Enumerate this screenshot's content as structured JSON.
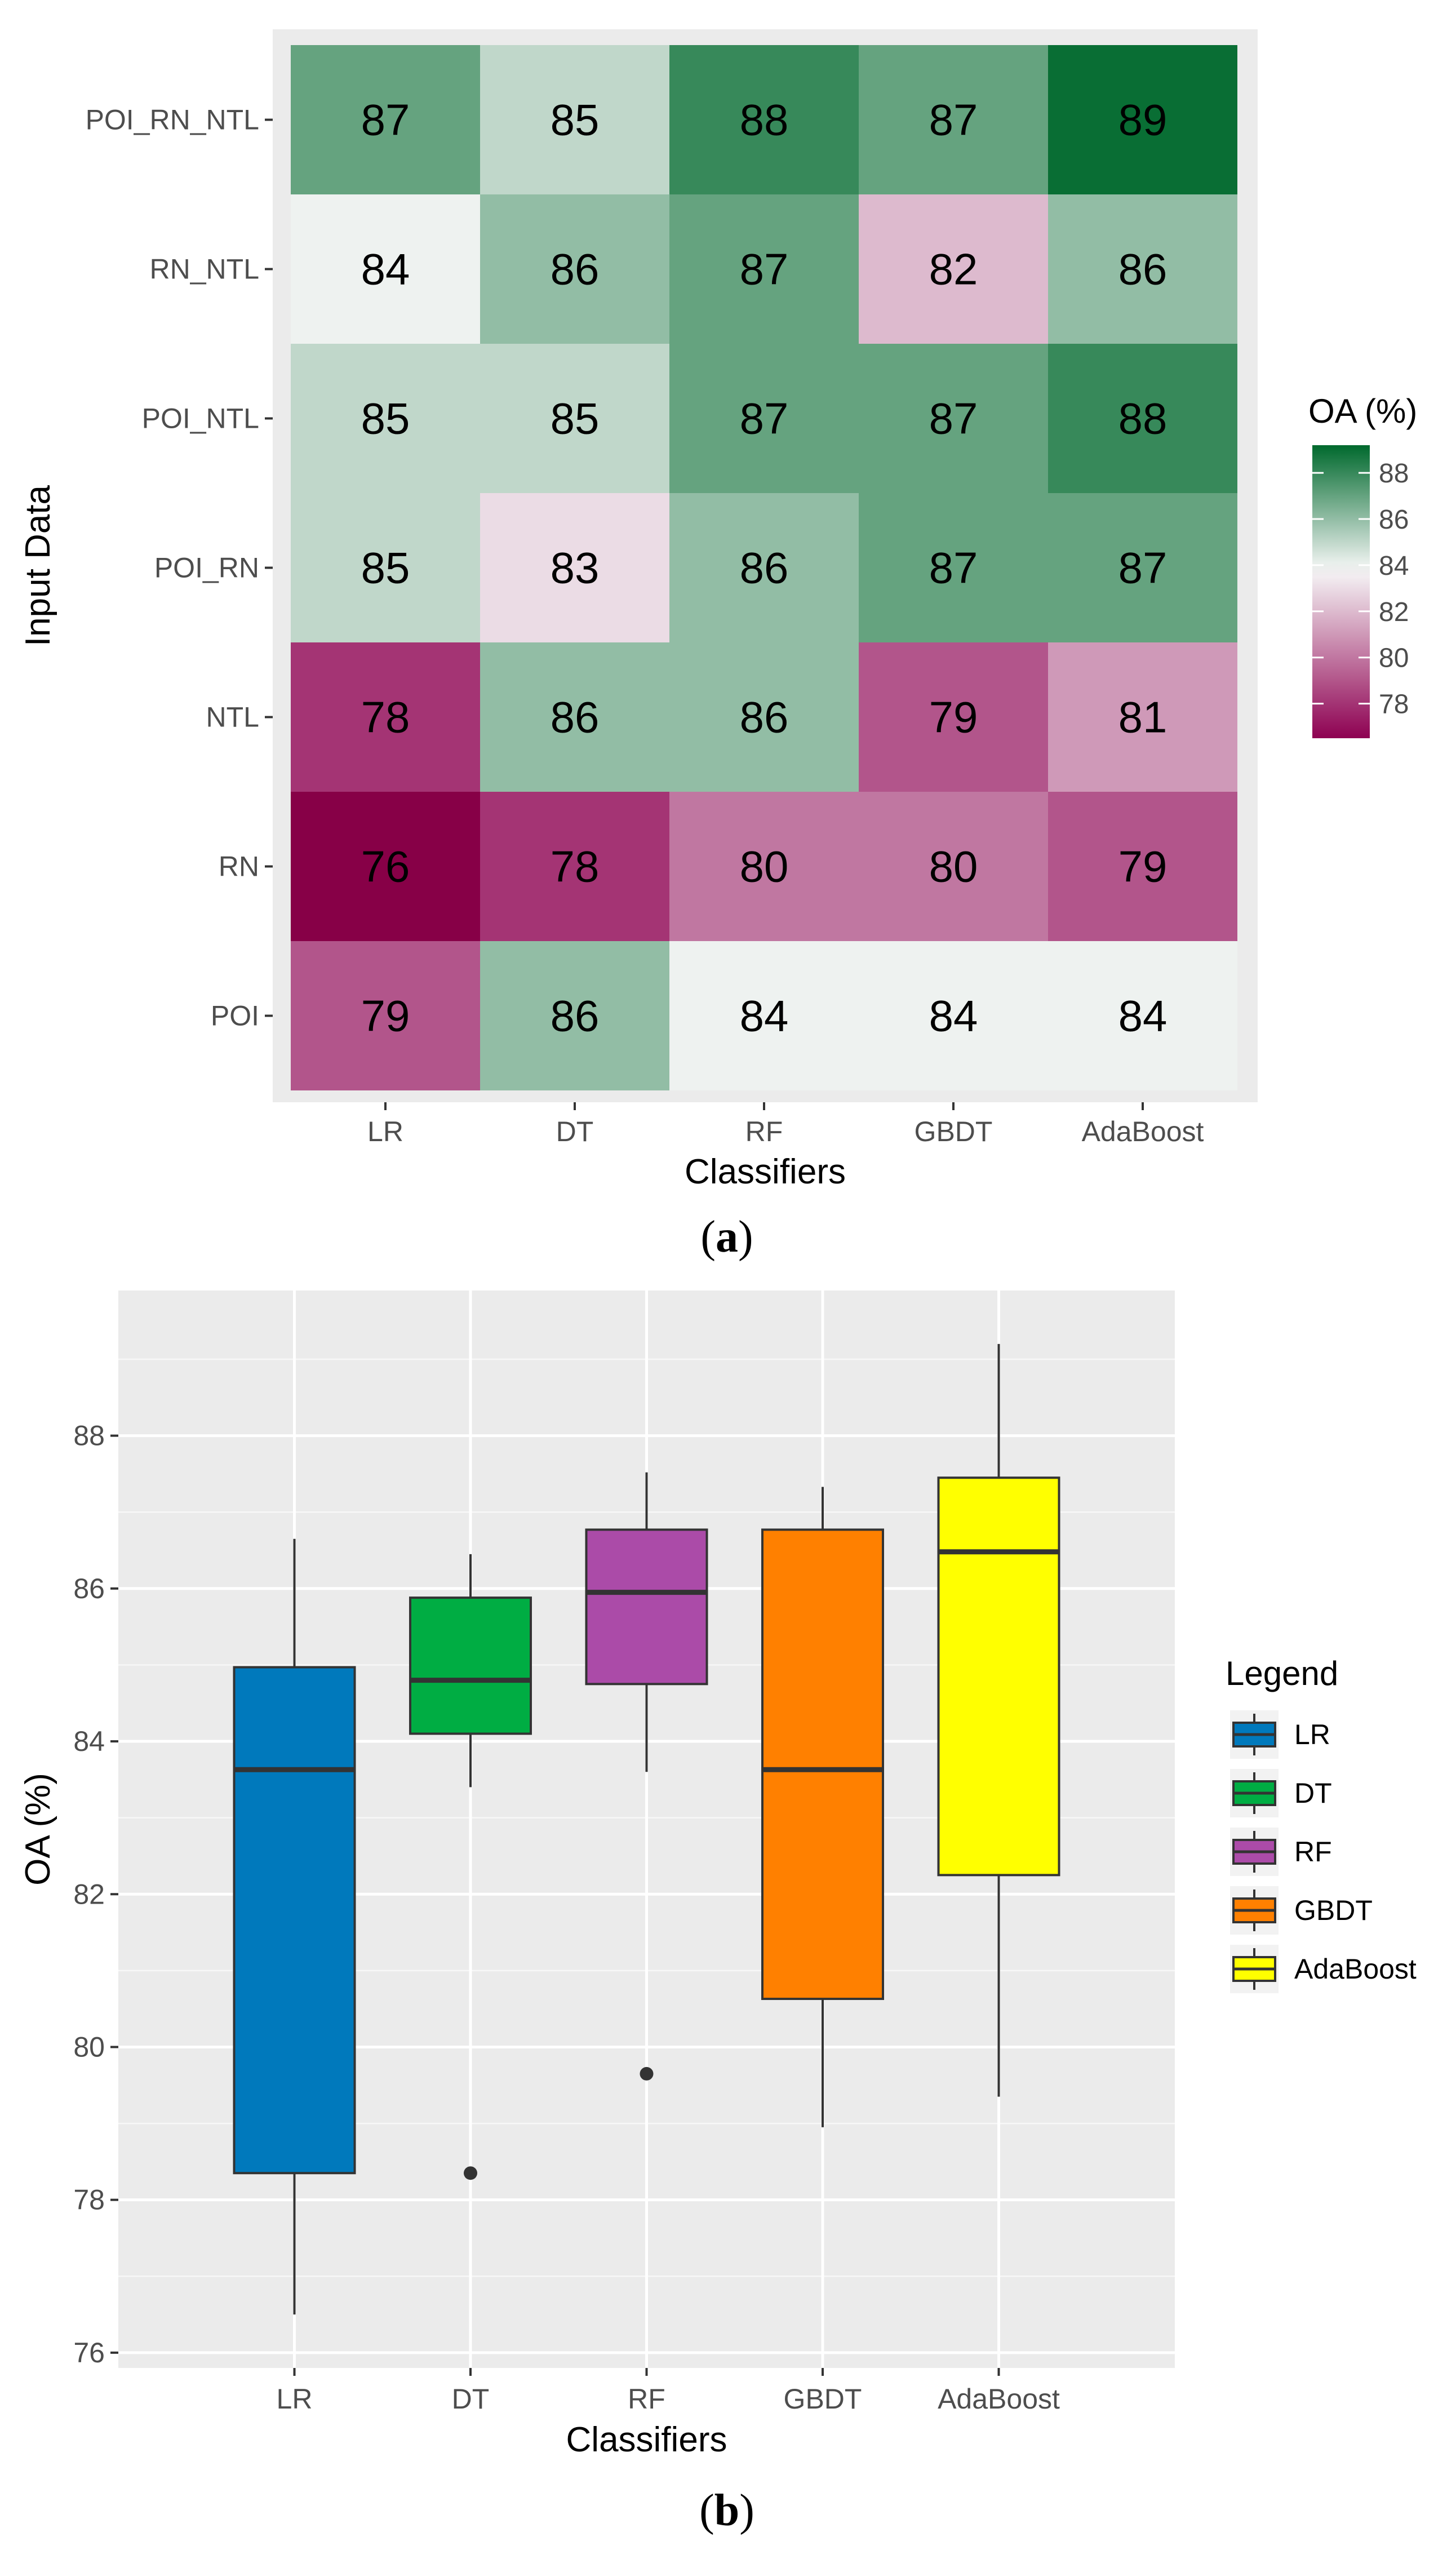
{
  "chart_data": [
    {
      "type": "heatmap",
      "panel_label": "a",
      "xlabel": "Classifiers",
      "ylabel": "Input Data",
      "x_categories": [
        "LR",
        "DT",
        "RF",
        "GBDT",
        "AdaBoost"
      ],
      "y_categories": [
        "POI_RN_NTL",
        "RN_NTL",
        "POI_NTL",
        "POI_RN",
        "NTL",
        "RN",
        "POI"
      ],
      "values": [
        [
          87,
          85,
          88,
          87,
          89
        ],
        [
          84,
          86,
          87,
          82,
          86
        ],
        [
          85,
          85,
          87,
          87,
          88
        ],
        [
          85,
          83,
          86,
          87,
          87
        ],
        [
          78,
          86,
          86,
          79,
          81
        ],
        [
          76,
          78,
          80,
          80,
          79
        ],
        [
          79,
          86,
          84,
          84,
          84
        ]
      ],
      "colorbar": {
        "title": "OA (%)",
        "min": 76.5,
        "max": 89.2,
        "midpoint": 83.8,
        "ticks": [
          78,
          80,
          82,
          84,
          86,
          88
        ],
        "low_color": "#8e0152",
        "mid_color": "#f7f7f7",
        "high_color": "#00692d"
      }
    },
    {
      "type": "boxplot",
      "panel_label": "b",
      "xlabel": "Classifiers",
      "ylabel": "OA (%)",
      "categories": [
        "LR",
        "DT",
        "RF",
        "GBDT",
        "AdaBoost"
      ],
      "ylim": [
        75.8,
        89.9
      ],
      "yticks": [
        76,
        78,
        80,
        82,
        84,
        86,
        88
      ],
      "legend_title": "Legend",
      "boxes": [
        {
          "name": "LR",
          "color": "#0079bc",
          "whisker_low": 76.5,
          "q1": 78.35,
          "median": 83.63,
          "q3": 84.97,
          "whisker_high": 86.65,
          "outliers": []
        },
        {
          "name": "DT",
          "color": "#00ad43",
          "whisker_low": 83.4,
          "q1": 84.1,
          "median": 84.8,
          "q3": 85.88,
          "whisker_high": 86.45,
          "outliers": [
            78.35
          ]
        },
        {
          "name": "RF",
          "color": "#ab4ba8",
          "whisker_low": 83.6,
          "q1": 84.75,
          "median": 85.95,
          "q3": 86.77,
          "whisker_high": 87.52,
          "outliers": [
            79.65
          ]
        },
        {
          "name": "GBDT",
          "color": "#ff8000",
          "whisker_low": 78.95,
          "q1": 80.63,
          "median": 83.63,
          "q3": 86.77,
          "whisker_high": 87.33,
          "outliers": []
        },
        {
          "name": "AdaBoost",
          "color": "#ffff00",
          "whisker_low": 79.35,
          "q1": 82.25,
          "median": 86.48,
          "q3": 87.45,
          "whisker_high": 89.2,
          "outliers": []
        }
      ]
    }
  ]
}
